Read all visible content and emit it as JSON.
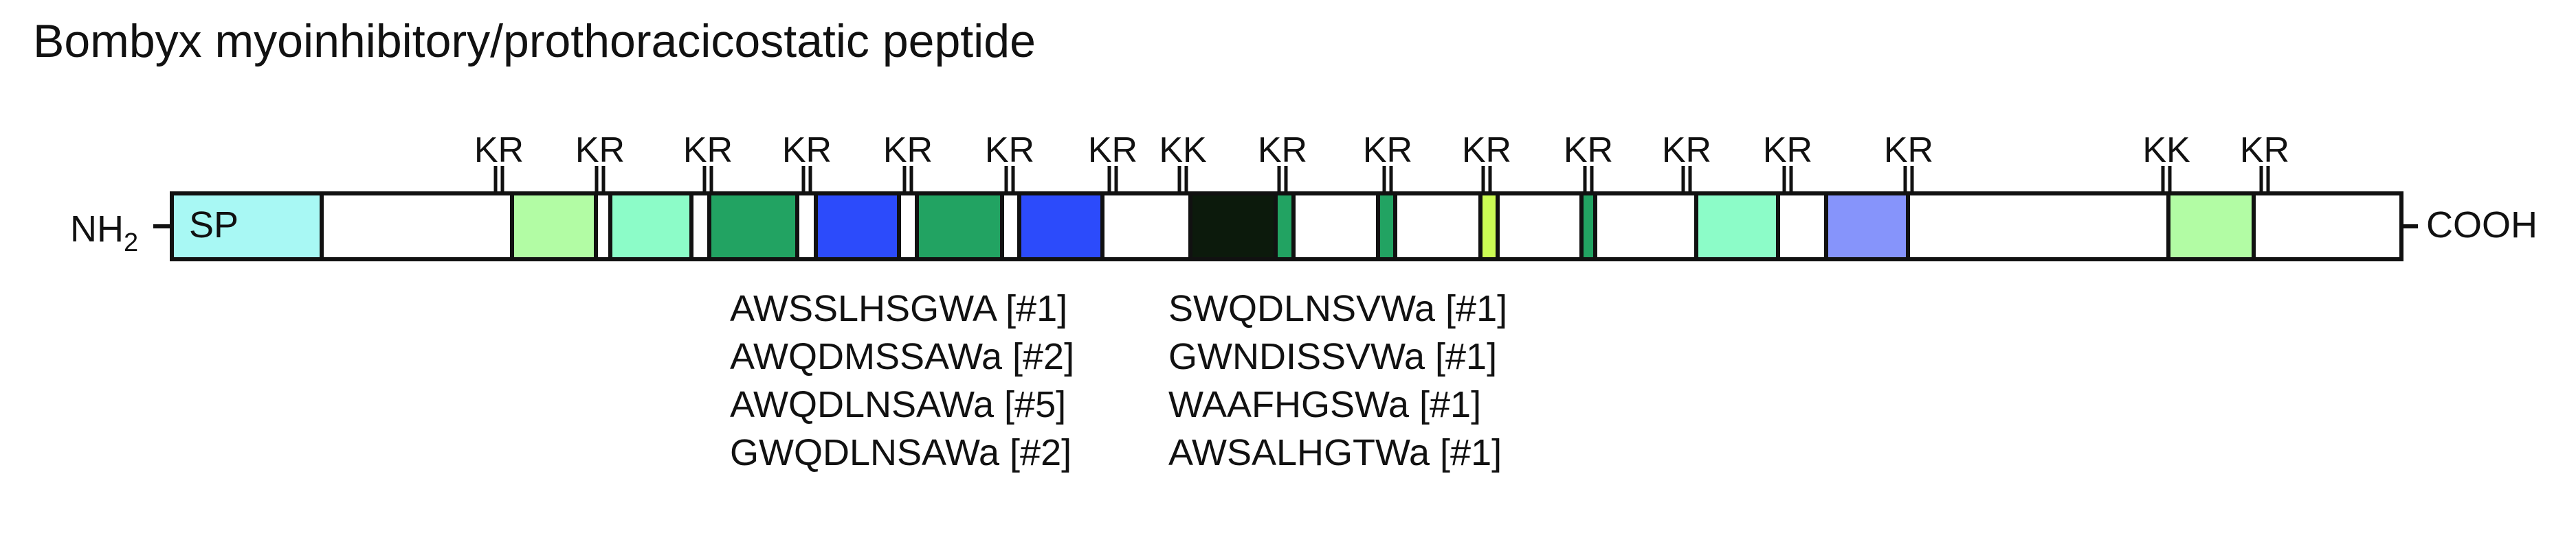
{
  "title": "Bombyx myoinhibitory/prothoracicostatic peptide",
  "n_terminus": {
    "label_main": "NH",
    "label_sub": "2"
  },
  "c_terminus": {
    "label": "COOH"
  },
  "signal_peptide": {
    "label": "SP",
    "color": "#a8f8f4"
  },
  "colors": {
    "outline": "#111111",
    "background": "#ffffff",
    "light_green": "#b2fca4",
    "mint": "#8cfcc8",
    "green": "#22a362",
    "blue": "#2c4bfb",
    "black": "#0c1a0c",
    "lime": "#ccfc54",
    "periwinkle": "#8694fb"
  },
  "segments": [
    {
      "name": "signal-peptide",
      "color": "#a8f8f4"
    },
    {
      "name": "spacer",
      "color": "#ffffff"
    },
    {
      "name": "peptide",
      "color": "#b2fca4"
    },
    {
      "name": "spacer",
      "color": "#ffffff"
    },
    {
      "name": "peptide",
      "color": "#8cfcc8"
    },
    {
      "name": "spacer",
      "color": "#ffffff"
    },
    {
      "name": "peptide",
      "color": "#22a362"
    },
    {
      "name": "spacer",
      "color": "#ffffff"
    },
    {
      "name": "peptide",
      "color": "#2c4bfb"
    },
    {
      "name": "spacer",
      "color": "#ffffff"
    },
    {
      "name": "peptide",
      "color": "#22a362"
    },
    {
      "name": "spacer",
      "color": "#ffffff"
    },
    {
      "name": "peptide",
      "color": "#2c4bfb"
    },
    {
      "name": "spacer",
      "color": "#ffffff"
    },
    {
      "name": "peptide",
      "color": "#0c1a0c"
    },
    {
      "name": "peptide",
      "color": "#22a362"
    },
    {
      "name": "spacer",
      "color": "#ffffff"
    },
    {
      "name": "peptide",
      "color": "#22a362"
    },
    {
      "name": "spacer",
      "color": "#ffffff"
    },
    {
      "name": "peptide",
      "color": "#ccfc54"
    },
    {
      "name": "spacer",
      "color": "#ffffff"
    },
    {
      "name": "peptide",
      "color": "#22a362"
    },
    {
      "name": "spacer",
      "color": "#ffffff"
    },
    {
      "name": "peptide",
      "color": "#8cfcc8"
    },
    {
      "name": "spacer",
      "color": "#ffffff"
    },
    {
      "name": "peptide",
      "color": "#8694fb"
    },
    {
      "name": "spacer",
      "color": "#ffffff"
    },
    {
      "name": "peptide",
      "color": "#b2fca4"
    },
    {
      "name": "spacer",
      "color": "#ffffff"
    }
  ],
  "cleavage_sites": [
    "KR",
    "KR",
    "KR",
    "KR",
    "KR",
    "KR",
    "KR",
    "KK",
    "KR",
    "KR",
    "KR",
    "KR",
    "KR",
    "KR",
    "KR",
    "KK",
    "KR"
  ],
  "peptide_lists": [
    [
      "AWSSLHSGWA [#1]",
      "AWQDMSSAWa [#2]",
      "AWQDLNSAWa [#5]",
      "GWQDLNSAWa [#2]"
    ],
    [
      "SWQDLNSVWa [#1]",
      "GWNDISSVWa [#1]",
      "WAAFHGSWa [#1]",
      "AWSALHGTWa [#1]"
    ]
  ]
}
